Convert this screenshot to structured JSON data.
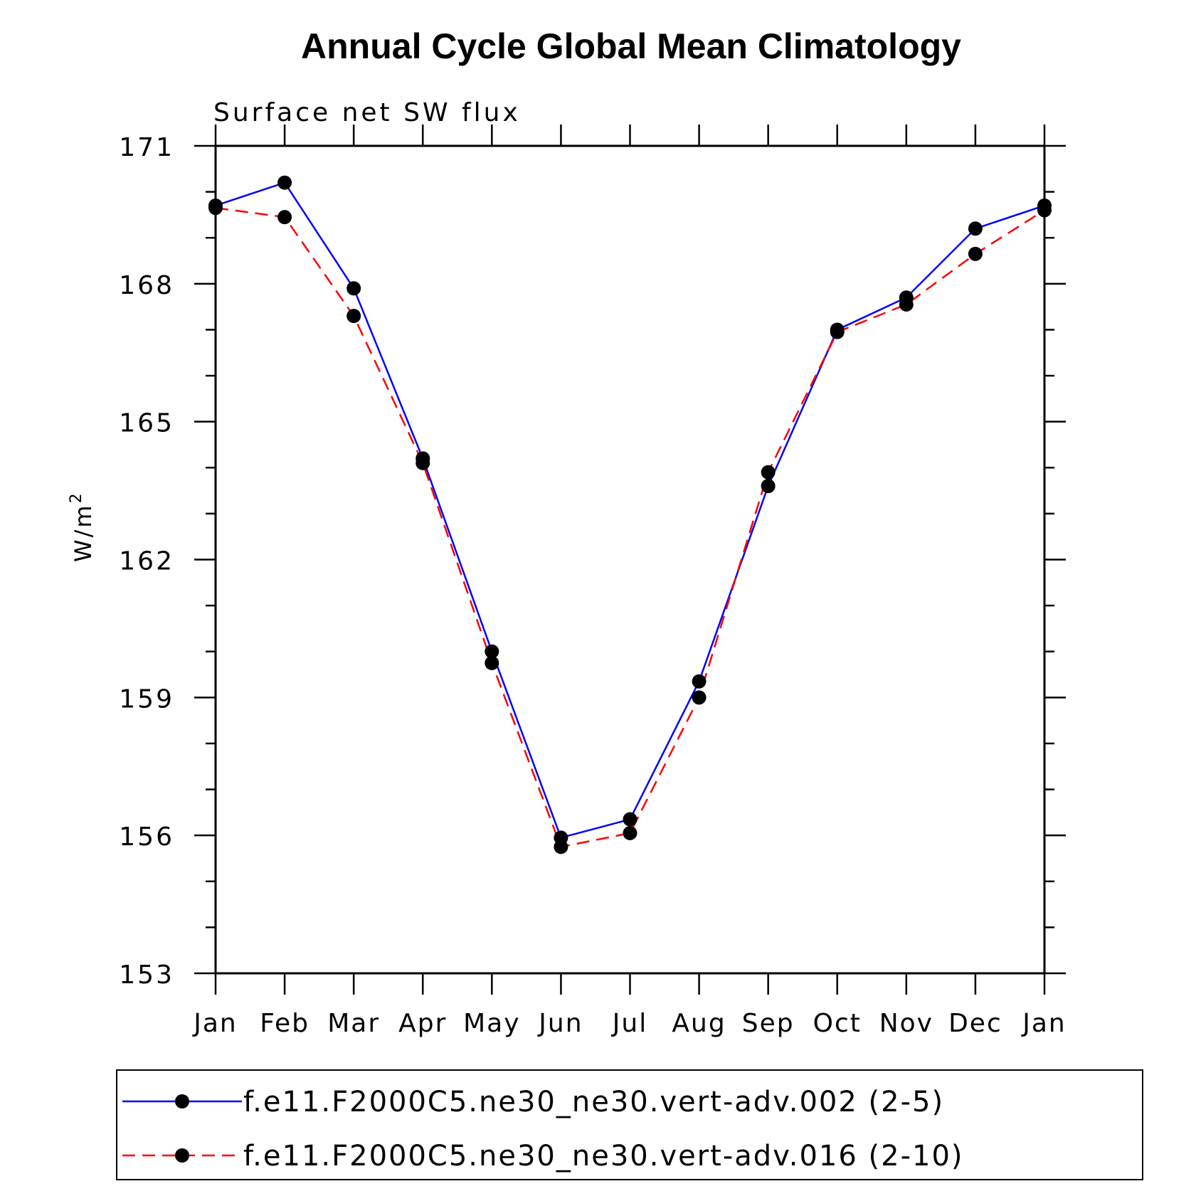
{
  "chart_data": {
    "type": "line",
    "title": "Annual Cycle Global Mean Climatology",
    "subtitle": "Surface net SW flux",
    "ylabel": "W/m",
    "ylabel_superscript": "2",
    "xlabel": "",
    "categories": [
      "Jan",
      "Feb",
      "Mar",
      "Apr",
      "May",
      "Jun",
      "Jul",
      "Aug",
      "Sep",
      "Oct",
      "Nov",
      "Dec",
      "Jan"
    ],
    "ylim": [
      153,
      171
    ],
    "yticks": [
      153,
      156,
      159,
      162,
      165,
      168,
      171
    ],
    "yticks_text": [
      "153",
      "156",
      "159",
      "162",
      "165",
      "168",
      "171"
    ],
    "grid": false,
    "legend_position": "bottom",
    "series": [
      {
        "name": "f.e11.F2000C5.ne30_ne30.vert-adv.002 (2-5)",
        "color": "#0000ff",
        "dash": "solid",
        "values": [
          169.7,
          170.2,
          167.9,
          164.2,
          160.0,
          155.95,
          156.35,
          159.35,
          163.6,
          167.0,
          167.7,
          169.2,
          169.7
        ]
      },
      {
        "name": "f.e11.F2000C5.ne30_ne30.vert-adv.016 (2-10)",
        "color": "#ff0000",
        "dash": "dashed",
        "values": [
          169.65,
          169.45,
          167.3,
          164.1,
          159.75,
          155.75,
          156.05,
          159.0,
          163.9,
          166.95,
          167.55,
          168.65,
          169.6
        ]
      }
    ],
    "marker": "filled-circle",
    "marker_color": "#000000"
  }
}
